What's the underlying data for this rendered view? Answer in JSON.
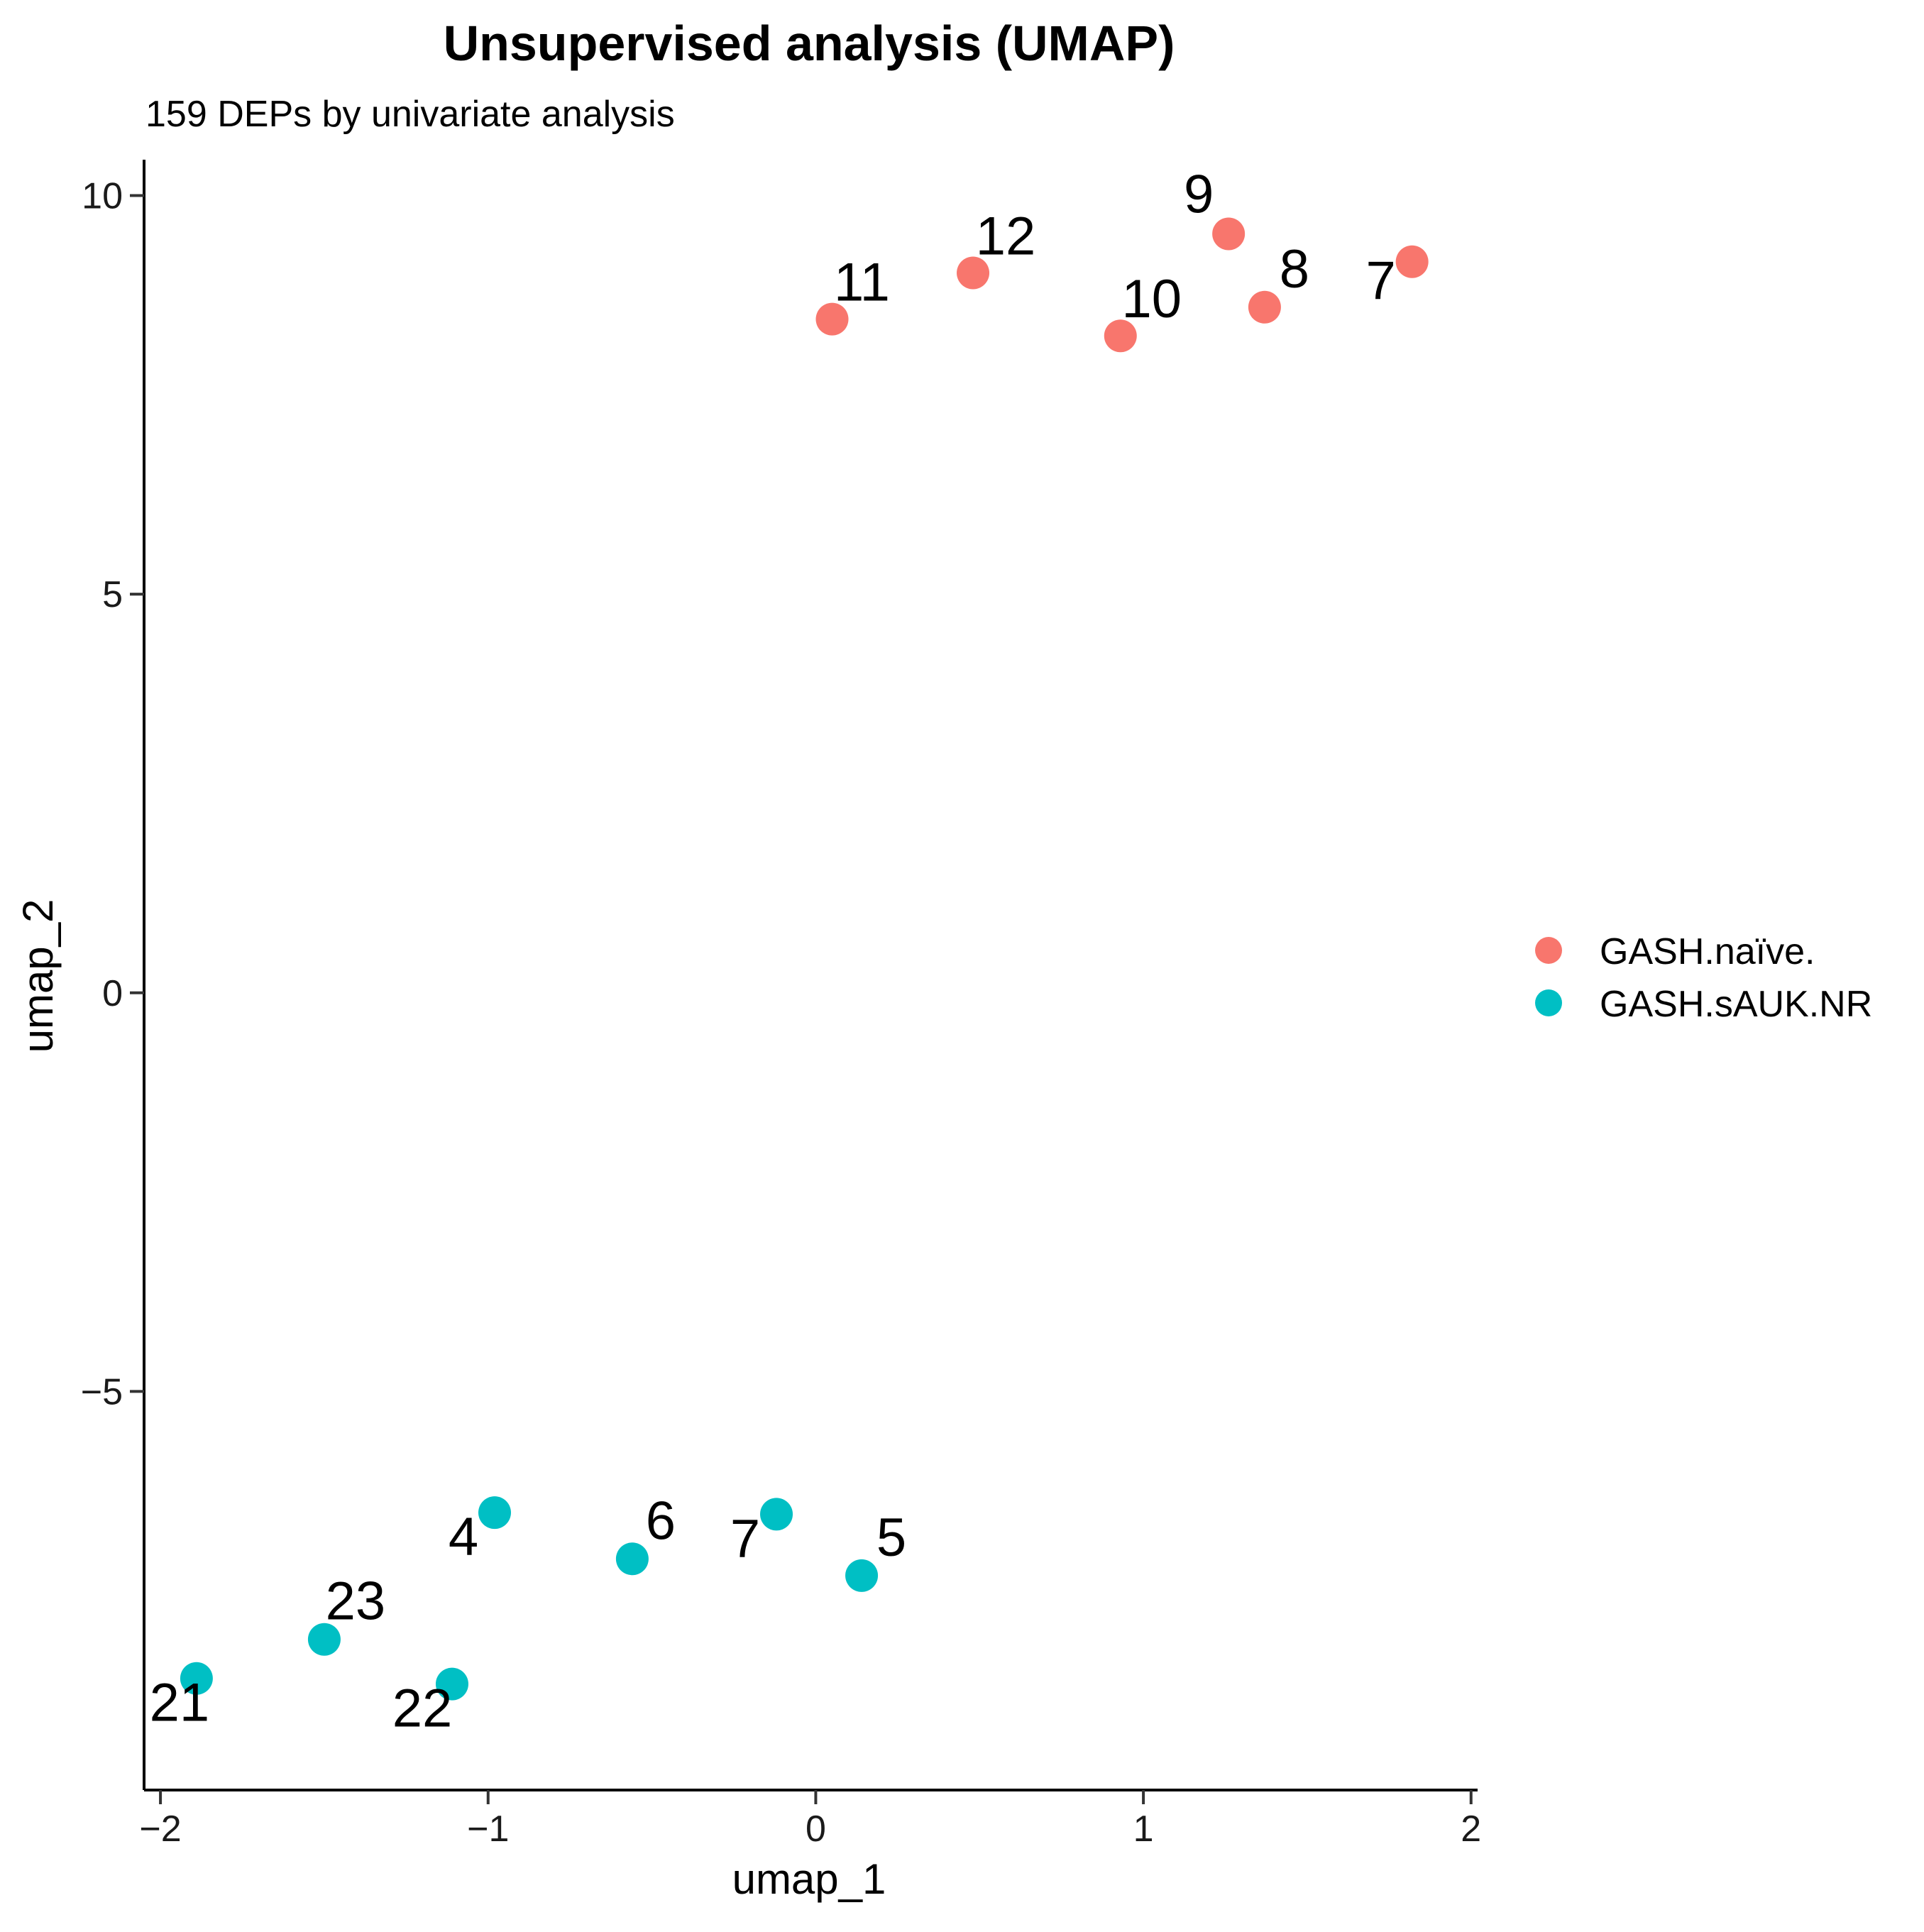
{
  "chart_data": {
    "type": "scatter",
    "title": "Unsupervised analysis (UMAP)",
    "subtitle": "159 DEPs by univariate analysis",
    "xlabel": "umap_1",
    "ylabel": "umap_2",
    "xlim": [
      -2.05,
      2.02
    ],
    "ylim": [
      -10.0,
      10.45
    ],
    "x_ticks": [
      -2,
      -1,
      0,
      1,
      2
    ],
    "x_tick_labels": [
      "−2",
      "−1",
      "0",
      "1",
      "2"
    ],
    "y_ticks": [
      -5,
      0,
      5,
      10
    ],
    "y_tick_labels": [
      "−5",
      "0",
      "5",
      "10"
    ],
    "grid": false,
    "legend_position": "right",
    "series": [
      {
        "name": "GASH.naïve.",
        "color": "#F8766D",
        "points": [
          {
            "label": "11",
            "x": 0.05,
            "y": 8.45
          },
          {
            "label": "12",
            "x": 0.48,
            "y": 9.03
          },
          {
            "label": "10",
            "x": 0.93,
            "y": 8.24
          },
          {
            "label": "9",
            "x": 1.26,
            "y": 9.52
          },
          {
            "label": "8",
            "x": 1.37,
            "y": 8.6
          },
          {
            "label": "7",
            "x": 1.82,
            "y": 9.17
          }
        ]
      },
      {
        "name": "GASH.sAUK.NR",
        "color": "#00BFC4",
        "points": [
          {
            "label": "4",
            "x": -0.98,
            "y": -6.52
          },
          {
            "label": "6",
            "x": -0.56,
            "y": -7.1
          },
          {
            "label": "7",
            "x": -0.12,
            "y": -6.54
          },
          {
            "label": "5",
            "x": 0.14,
            "y": -7.31
          },
          {
            "label": "23",
            "x": -1.5,
            "y": -8.11
          },
          {
            "label": "21",
            "x": -1.89,
            "y": -8.6
          },
          {
            "label": "22",
            "x": -1.11,
            "y": -8.67
          }
        ]
      }
    ]
  }
}
